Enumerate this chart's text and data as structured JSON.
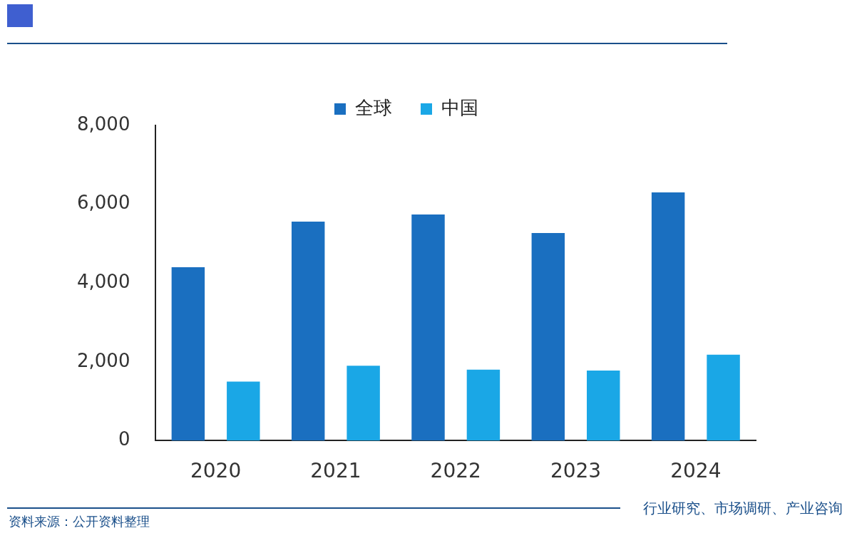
{
  "chart_data": {
    "type": "bar",
    "categories": [
      "2020",
      "2021",
      "2022",
      "2023",
      "2024"
    ],
    "series": [
      {
        "name": "全球",
        "color": "#1a6fc0",
        "values": [
          4400,
          5560,
          5740,
          5270,
          6300
        ]
      },
      {
        "name": "中国",
        "color": "#1aa7e6",
        "values": [
          1500,
          1900,
          1800,
          1780,
          2180
        ]
      }
    ],
    "ylim": [
      0,
      8000
    ],
    "yticks": [
      {
        "value": 0,
        "label": "0"
      },
      {
        "value": 2000,
        "label": "2,000"
      },
      {
        "value": 4000,
        "label": "4,000"
      },
      {
        "value": 6000,
        "label": "6,000"
      },
      {
        "value": 8000,
        "label": "8,000"
      }
    ],
    "grid": false,
    "legend": "top",
    "annotations": [
      "资料来源：公开资料整理",
      "行业研究、市场调研、产业咨询"
    ]
  }
}
